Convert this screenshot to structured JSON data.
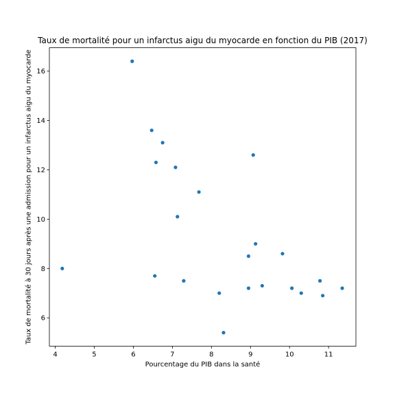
{
  "chart_data": {
    "type": "scatter",
    "title": "Taux de mortalité pour un infarctus aigu du myocarde en fonction du PIB (2017)",
    "xlabel": "Pourcentage du PIB dans la santé",
    "ylabel": "Taux de mortalité à 30 jours après une admission pour un infarctus aigu du myocarde",
    "xlim": [
      3.85,
      11.7
    ],
    "ylim": [
      4.85,
      16.95
    ],
    "xticks": [
      4,
      5,
      6,
      7,
      8,
      9,
      10,
      11
    ],
    "yticks": [
      6,
      8,
      10,
      12,
      14,
      16
    ],
    "grid": false,
    "marker_color": "#1f77b4",
    "points": [
      {
        "x": 4.18,
        "y": 8.0
      },
      {
        "x": 5.97,
        "y": 16.4
      },
      {
        "x": 6.47,
        "y": 13.6
      },
      {
        "x": 6.55,
        "y": 7.7
      },
      {
        "x": 6.58,
        "y": 12.3
      },
      {
        "x": 6.75,
        "y": 13.1
      },
      {
        "x": 7.08,
        "y": 12.1
      },
      {
        "x": 7.13,
        "y": 10.1
      },
      {
        "x": 7.29,
        "y": 7.5
      },
      {
        "x": 7.68,
        "y": 11.1
      },
      {
        "x": 8.2,
        "y": 7.0
      },
      {
        "x": 8.31,
        "y": 5.4
      },
      {
        "x": 8.95,
        "y": 8.5
      },
      {
        "x": 8.95,
        "y": 7.2
      },
      {
        "x": 9.07,
        "y": 12.6
      },
      {
        "x": 9.13,
        "y": 9.0
      },
      {
        "x": 9.3,
        "y": 7.3
      },
      {
        "x": 9.82,
        "y": 8.6
      },
      {
        "x": 10.06,
        "y": 7.2
      },
      {
        "x": 10.3,
        "y": 7.0
      },
      {
        "x": 10.78,
        "y": 7.5
      },
      {
        "x": 10.85,
        "y": 6.9
      },
      {
        "x": 11.35,
        "y": 7.2
      }
    ]
  }
}
